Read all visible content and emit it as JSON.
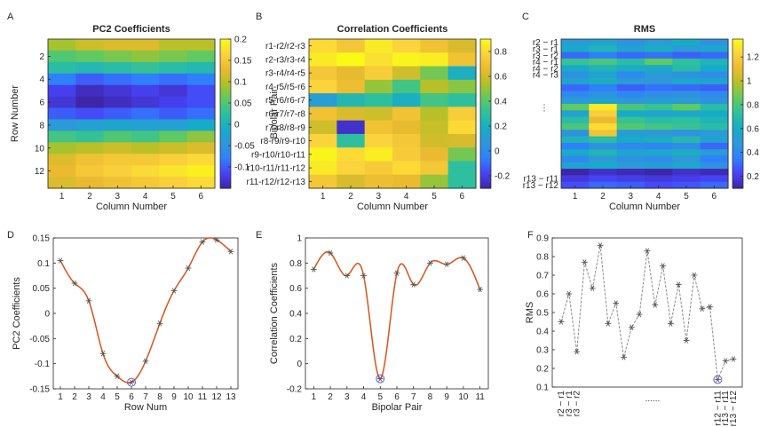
{
  "colormap": [
    "#3e26a8",
    "#4743f8",
    "#2f80fb",
    "#2f97da",
    "#18abc7",
    "#2ec09e",
    "#5fc962",
    "#b2c127",
    "#ebba30",
    "#fbd33d",
    "#f9fb15"
  ],
  "line_color": "#d95319",
  "marker_color": "#555555",
  "chart_data": [
    {
      "id": "A",
      "type": "heatmap",
      "title": "PC2 Coefficients",
      "xlabel": "Column Number",
      "ylabel": "Row Number",
      "xticks": [
        "1",
        "2",
        "3",
        "4",
        "5",
        "6"
      ],
      "yticks": [
        "2",
        "4",
        "6",
        "8",
        "10",
        "12"
      ],
      "clim": [
        -0.15,
        0.2
      ],
      "cbar_ticks": [
        "0.2",
        "0.15",
        "0.1",
        "0.05",
        "0",
        "-0.05",
        "-0.1"
      ],
      "cbar_values": [
        0.2,
        0.15,
        0.1,
        0.05,
        0,
        -0.05,
        -0.1
      ],
      "values": [
        [
          0.09,
          0.11,
          0.12,
          0.12,
          0.1,
          0.1
        ],
        [
          0.05,
          0.06,
          0.07,
          0.08,
          0.07,
          0.06
        ],
        [
          0.02,
          0.01,
          0.02,
          0.03,
          0.02,
          0.01
        ],
        [
          -0.08,
          -0.1,
          -0.09,
          -0.08,
          -0.09,
          -0.08
        ],
        [
          -0.12,
          -0.14,
          -0.13,
          -0.12,
          -0.13,
          -0.11
        ],
        [
          -0.13,
          -0.15,
          -0.14,
          -0.13,
          -0.12,
          -0.11
        ],
        [
          -0.1,
          -0.11,
          -0.1,
          -0.09,
          -0.1,
          -0.09
        ],
        [
          -0.04,
          -0.03,
          -0.02,
          -0.03,
          -0.03,
          -0.01
        ],
        [
          0.04,
          0.03,
          0.05,
          0.04,
          0.06,
          0.08
        ],
        [
          0.09,
          0.1,
          0.11,
          0.1,
          0.11,
          0.12
        ],
        [
          0.12,
          0.14,
          0.15,
          0.15,
          0.16,
          0.17
        ],
        [
          0.13,
          0.15,
          0.16,
          0.17,
          0.18,
          0.19
        ],
        [
          0.12,
          0.13,
          0.14,
          0.15,
          0.16,
          0.17
        ]
      ]
    },
    {
      "id": "B",
      "type": "heatmap",
      "title": "Correlation Coefficients",
      "xlabel": "Column Number",
      "ylabel": "Bipolar Pair",
      "xticks": [
        "1",
        "2",
        "3",
        "4",
        "5",
        "6"
      ],
      "yticks": [
        "r1-r2/r2-r3",
        "r2-r3/r3-r4",
        "r3-r4/r4-r5",
        "r4-r5/r5-r6",
        "r5-r6/r6-r7",
        "r6-r7/r7-r8",
        "r7-r8/r8-r9",
        "r8-r9/r9-r10",
        "r9-r10/r10-r11",
        "r10-r11/r11-r12",
        "r11-r12/r12-r13"
      ],
      "clim": [
        -0.3,
        0.9
      ],
      "cbar_ticks": [
        "0.8",
        "0.6",
        "0.4",
        "0.2",
        "0",
        "-0.2"
      ],
      "cbar_values": [
        0.8,
        0.6,
        0.4,
        0.2,
        0,
        -0.2
      ],
      "values": [
        [
          0.8,
          0.72,
          0.85,
          0.78,
          0.7,
          0.62
        ],
        [
          0.85,
          0.9,
          0.82,
          0.88,
          0.86,
          0.7
        ],
        [
          0.72,
          0.65,
          0.75,
          0.6,
          0.45,
          0.2
        ],
        [
          0.78,
          0.68,
          0.5,
          0.35,
          0.55,
          0.48
        ],
        [
          0.1,
          0.25,
          0.3,
          0.2,
          0.35,
          0.3
        ],
        [
          0.7,
          0.62,
          0.6,
          0.7,
          0.55,
          0.75
        ],
        [
          0.6,
          -0.25,
          0.7,
          0.65,
          0.58,
          0.8
        ],
        [
          0.78,
          0.3,
          0.78,
          0.72,
          0.6,
          0.62
        ],
        [
          0.88,
          0.8,
          0.86,
          0.74,
          0.66,
          0.45
        ],
        [
          0.85,
          0.78,
          0.74,
          0.8,
          0.72,
          0.3
        ],
        [
          0.72,
          0.62,
          0.68,
          0.66,
          0.5,
          0.3
        ]
      ]
    },
    {
      "id": "C",
      "type": "heatmap",
      "title": "RMS",
      "xlabel": "Column Number",
      "ylabel": "",
      "xticks": [
        "1",
        "2",
        "3",
        "4",
        "5",
        "6"
      ],
      "yticks_top": [
        "r2 − r1",
        "r3 − r1",
        "r3 − r2",
        "r4 − r1",
        "r4 − r2",
        "r4 − r3"
      ],
      "yticks_mid": "⋮",
      "yticks_bottom": [
        "r13 − r11",
        "r13 − r12"
      ],
      "clim": [
        0.1,
        1.35
      ],
      "cbar_ticks": [
        "1.2",
        "1",
        "0.8",
        "0.6",
        "0.4",
        "0.2"
      ],
      "cbar_values": [
        1.2,
        1.0,
        0.8,
        0.6,
        0.4,
        0.2
      ],
      "values": [
        [
          0.5,
          0.55,
          0.45,
          0.5,
          0.6,
          0.45
        ],
        [
          0.6,
          0.65,
          0.55,
          0.62,
          0.5,
          0.58
        ],
        [
          0.3,
          0.35,
          0.3,
          0.32,
          0.28,
          0.3
        ],
        [
          0.75,
          0.8,
          0.7,
          0.85,
          0.72,
          0.65
        ],
        [
          0.6,
          0.65,
          0.62,
          0.58,
          0.7,
          0.6
        ],
        [
          0.45,
          0.55,
          0.4,
          0.5,
          0.45,
          0.42
        ],
        [
          0.55,
          0.62,
          0.5,
          0.48,
          0.58,
          0.55
        ],
        [
          0.3,
          0.35,
          0.28,
          0.32,
          0.3,
          0.28
        ],
        [
          0.4,
          0.45,
          0.38,
          0.42,
          0.45,
          0.4
        ],
        [
          0.5,
          0.55,
          0.48,
          0.52,
          0.5,
          0.45
        ],
        [
          0.85,
          1.3,
          0.8,
          0.75,
          0.85,
          0.7
        ],
        [
          0.55,
          1.2,
          0.6,
          0.55,
          0.58,
          0.6
        ],
        [
          0.7,
          1.1,
          0.75,
          0.7,
          0.72,
          0.65
        ],
        [
          0.8,
          1.25,
          0.82,
          0.78,
          0.75,
          0.7
        ],
        [
          0.45,
          1.15,
          0.5,
          0.48,
          0.45,
          0.5
        ],
        [
          0.65,
          0.7,
          0.6,
          0.62,
          0.68,
          0.55
        ],
        [
          0.35,
          0.45,
          0.4,
          0.38,
          0.42,
          0.3
        ],
        [
          0.6,
          0.65,
          0.55,
          0.58,
          0.62,
          0.5
        ],
        [
          0.4,
          0.5,
          0.45,
          0.42,
          0.48,
          0.35
        ],
        [
          0.55,
          0.6,
          0.5,
          0.52,
          0.58,
          0.45
        ],
        [
          0.1,
          0.15,
          0.12,
          0.1,
          0.15,
          0.12
        ],
        [
          0.18,
          0.22,
          0.2,
          0.18,
          0.2,
          0.22
        ],
        [
          0.25,
          0.3,
          0.28,
          0.24,
          0.26,
          0.3
        ]
      ]
    },
    {
      "id": "D",
      "type": "line",
      "xlabel": "Row Num",
      "ylabel": "PC2 Coefficients",
      "xlim": [
        0.5,
        13.5
      ],
      "ylim": [
        -0.15,
        0.15
      ],
      "xticks": [
        1,
        2,
        3,
        4,
        5,
        6,
        7,
        8,
        9,
        10,
        11,
        12,
        13
      ],
      "yticks": [
        0.15,
        0.1,
        0.05,
        0,
        -0.05,
        -0.1,
        -0.15
      ],
      "ytick_labels": [
        "0.15",
        "0.1",
        "0.05",
        "0",
        "-0.05",
        "-0.1",
        "-0.15"
      ],
      "x": [
        1,
        2,
        3,
        4,
        5,
        6,
        7,
        8,
        9,
        10,
        11,
        12,
        13
      ],
      "y": [
        0.105,
        0.06,
        0.025,
        -0.08,
        -0.125,
        -0.137,
        -0.095,
        -0.02,
        0.045,
        0.09,
        0.142,
        0.146,
        0.123
      ],
      "circled_index": 5
    },
    {
      "id": "E",
      "type": "line",
      "xlabel": "Bipolar Pair",
      "ylabel": "Correlation Coefficients",
      "xlim": [
        0.5,
        11.5
      ],
      "ylim": [
        -0.2,
        1.0
      ],
      "xticks": [
        1,
        2,
        3,
        4,
        5,
        6,
        7,
        8,
        9,
        10,
        11
      ],
      "yticks": [
        1,
        0.8,
        0.6,
        0.4,
        0.2,
        0,
        -0.2
      ],
      "ytick_labels": [
        "1",
        "0.8",
        "0.6",
        "0.4",
        "0.2",
        "0",
        "-0.2"
      ],
      "x": [
        1,
        2,
        3,
        4,
        5,
        6,
        7,
        8,
        9,
        10,
        11
      ],
      "y": [
        0.75,
        0.88,
        0.7,
        0.7,
        -0.12,
        0.72,
        0.63,
        0.8,
        0.79,
        0.84,
        0.59
      ],
      "circled_index": 4
    },
    {
      "id": "F",
      "type": "line",
      "xlabel": "",
      "ylabel": "RMS",
      "ylim": [
        0.1,
        0.9
      ],
      "yticks": [
        0.9,
        0.8,
        0.7,
        0.6,
        0.5,
        0.4,
        0.3,
        0.2,
        0.1
      ],
      "ytick_labels": [
        "0.9",
        "0.8",
        "0.7",
        "0.6",
        "0.5",
        "0.4",
        "0.3",
        "0.2",
        "0.1"
      ],
      "x_labels_left": [
        "r2 − r1",
        "r3 − r1",
        "r3 − r2"
      ],
      "x_labels_right": [
        "r12 − r11",
        "r13 − r11",
        "r13 − r12"
      ],
      "x_ellipsis": "......",
      "y": [
        0.45,
        0.6,
        0.29,
        0.77,
        0.63,
        0.86,
        0.44,
        0.55,
        0.26,
        0.42,
        0.49,
        0.83,
        0.54,
        0.75,
        0.44,
        0.65,
        0.35,
        0.7,
        0.52,
        0.53,
        0.14,
        0.24,
        0.25
      ],
      "circled_index": 20
    }
  ],
  "panel_labels": [
    "A",
    "B",
    "C",
    "D",
    "E",
    "F"
  ]
}
